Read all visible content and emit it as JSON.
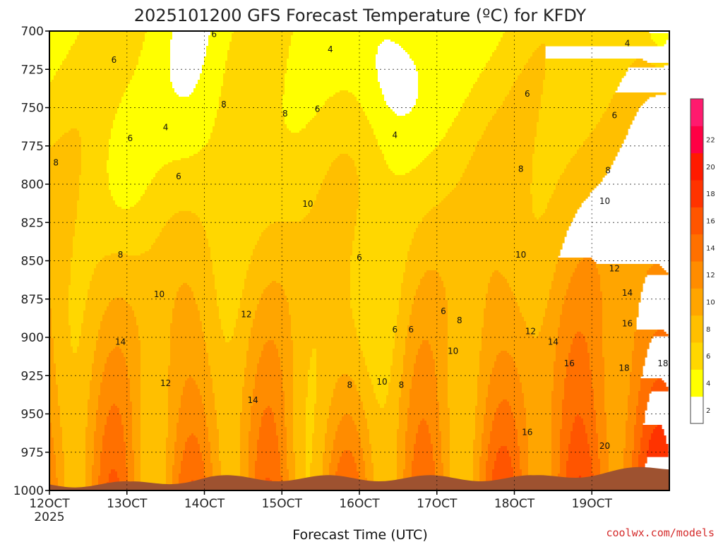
{
  "chart_data": {
    "type": "heatmap",
    "title": "2025101200 GFS Forecast Temperature (ºC) for KFDY",
    "xlabel": "Forecast Time (UTC)",
    "ylabel": "",
    "credit": "coolwx.com/models",
    "x_ticks": [
      "12OCT",
      "13OCT",
      "14OCT",
      "15OCT",
      "16OCT",
      "17OCT",
      "18OCT",
      "19OCT"
    ],
    "x_year": "2025",
    "xlim_hours": [
      0,
      192
    ],
    "y_ticks": [
      "700",
      "725",
      "750",
      "775",
      "800",
      "825",
      "850",
      "875",
      "900",
      "925",
      "950",
      "975",
      "1000"
    ],
    "ylim_hpa": [
      700,
      1000
    ],
    "levels": [
      2,
      4,
      6,
      8,
      10,
      12,
      14,
      16,
      18,
      20,
      22
    ],
    "colorbar_labels": [
      "22",
      "20",
      "18",
      "16",
      "14",
      "12",
      "10",
      "8",
      "6",
      "4",
      "2"
    ],
    "colors": [
      "#ffffff",
      "#ffff00",
      "#ffd700",
      "#ffbf00",
      "#ffa500",
      "#ff8c00",
      "#ff7000",
      "#ff5500",
      "#ff3300",
      "#ff1a00",
      "#ff0044",
      "#ff1a6e"
    ],
    "ground_color": "#9e5230",
    "contour_labels": [
      {
        "t": 2,
        "p": 786,
        "v": "8"
      },
      {
        "t": 20,
        "p": 719,
        "v": "6"
      },
      {
        "t": 25,
        "p": 770,
        "v": "6"
      },
      {
        "t": 36,
        "p": 763,
        "v": "4"
      },
      {
        "t": 40,
        "p": 795,
        "v": "6"
      },
      {
        "t": 51,
        "p": 702,
        "v": "6"
      },
      {
        "t": 54,
        "p": 748,
        "v": "8"
      },
      {
        "t": 73,
        "p": 754,
        "v": "8"
      },
      {
        "t": 83,
        "p": 751,
        "v": "6"
      },
      {
        "t": 87,
        "p": 712,
        "v": "4"
      },
      {
        "t": 107,
        "p": 768,
        "v": "4"
      },
      {
        "t": 80,
        "p": 813,
        "v": "10"
      },
      {
        "t": 22,
        "p": 846,
        "v": "8"
      },
      {
        "t": 34,
        "p": 872,
        "v": "10"
      },
      {
        "t": 61,
        "p": 885,
        "v": "12"
      },
      {
        "t": 22,
        "p": 903,
        "v": "14"
      },
      {
        "t": 36,
        "p": 930,
        "v": "12"
      },
      {
        "t": 63,
        "p": 941,
        "v": "14"
      },
      {
        "t": 93,
        "p": 931,
        "v": "8"
      },
      {
        "t": 96,
        "p": 848,
        "v": "6"
      },
      {
        "t": 103,
        "p": 929,
        "v": "10"
      },
      {
        "t": 107,
        "p": 895,
        "v": "6"
      },
      {
        "t": 109,
        "p": 931,
        "v": "8"
      },
      {
        "t": 112,
        "p": 895,
        "v": "6"
      },
      {
        "t": 122,
        "p": 883,
        "v": "6"
      },
      {
        "t": 127,
        "p": 889,
        "v": "8"
      },
      {
        "t": 125,
        "p": 909,
        "v": "10"
      },
      {
        "t": 148,
        "p": 741,
        "v": "6"
      },
      {
        "t": 146,
        "p": 790,
        "v": "8"
      },
      {
        "t": 146,
        "p": 846,
        "v": "10"
      },
      {
        "t": 149,
        "p": 896,
        "v": "12"
      },
      {
        "t": 156,
        "p": 903,
        "v": "14"
      },
      {
        "t": 175,
        "p": 755,
        "v": "6"
      },
      {
        "t": 173,
        "p": 791,
        "v": "8"
      },
      {
        "t": 172,
        "p": 811,
        "v": "10"
      },
      {
        "t": 175,
        "p": 855,
        "v": "12"
      },
      {
        "t": 179,
        "p": 871,
        "v": "14"
      },
      {
        "t": 179,
        "p": 891,
        "v": "16"
      },
      {
        "t": 161,
        "p": 917,
        "v": "16"
      },
      {
        "t": 178,
        "p": 920,
        "v": "18"
      },
      {
        "t": 190,
        "p": 917,
        "v": "18"
      },
      {
        "t": 148,
        "p": 962,
        "v": "16"
      },
      {
        "t": 172,
        "p": 971,
        "v": "20"
      },
      {
        "t": 179,
        "p": 708,
        "v": "4"
      }
    ]
  }
}
